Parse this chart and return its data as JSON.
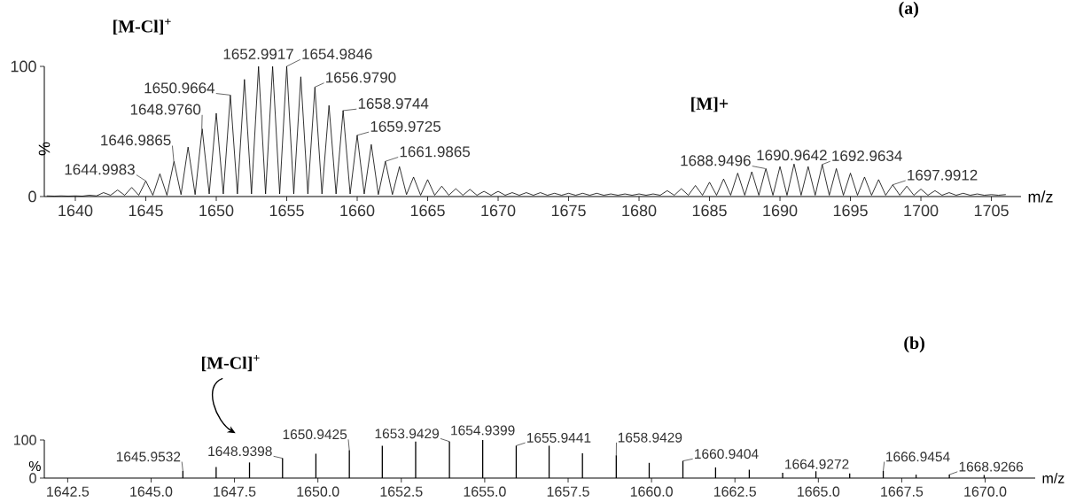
{
  "chart_data": [
    {
      "type": "line",
      "title": "(a)",
      "xlabel": "m/z",
      "ylabel": "%",
      "color": "#000000",
      "x": [
        1638,
        1638.5,
        1639,
        1639.5,
        1640,
        1640.5,
        1641,
        1641.5,
        1642,
        1642.5,
        1643,
        1643.5,
        1644,
        1644.5,
        1645,
        1645.5,
        1646,
        1646.5,
        1647,
        1647.5,
        1648,
        1648.5,
        1649,
        1649.5,
        1650,
        1650.5,
        1651,
        1651.5,
        1652,
        1652.5,
        1653,
        1653.5,
        1654,
        1654.5,
        1655,
        1655.5,
        1656,
        1656.5,
        1657,
        1657.5,
        1658,
        1658.5,
        1659,
        1659.5,
        1660,
        1660.5,
        1661,
        1661.5,
        1662,
        1662.5,
        1663,
        1663.5,
        1664,
        1664.5,
        1665,
        1665.5,
        1666,
        1666.5,
        1667,
        1667.5,
        1668,
        1668.5,
        1669,
        1669.5,
        1670,
        1670.5,
        1671,
        1671.5,
        1672,
        1672.5,
        1673,
        1673.5,
        1674,
        1674.5,
        1675,
        1675.5,
        1676,
        1676.5,
        1677,
        1677.5,
        1678,
        1678.5,
        1679,
        1679.5,
        1680,
        1680.5,
        1681,
        1681.5,
        1682,
        1682.5,
        1683,
        1683.5,
        1684,
        1684.5,
        1685,
        1685.5,
        1686,
        1686.5,
        1687,
        1687.5,
        1688,
        1688.5,
        1689,
        1689.5,
        1690,
        1690.5,
        1691,
        1691.5,
        1692,
        1692.5,
        1693,
        1693.5,
        1694,
        1694.5,
        1695,
        1695.5,
        1696,
        1696.5,
        1697,
        1697.5,
        1698,
        1698.5,
        1699,
        1699.5,
        1700,
        1700.5,
        1701,
        1701.5,
        1702,
        1702.5,
        1703,
        1703.5,
        1704,
        1704.5,
        1705,
        1705.5,
        1706
      ],
      "values": [
        0.5,
        0.3,
        0.5,
        0.3,
        0.5,
        0.3,
        1,
        0.5,
        3,
        1,
        5,
        1,
        7,
        1,
        12,
        1,
        17.5,
        1,
        27,
        1.5,
        38,
        1.5,
        52,
        2,
        64,
        2,
        78,
        2,
        90,
        2,
        100,
        2,
        100,
        2,
        100,
        2,
        92,
        2,
        84,
        2,
        70,
        2,
        66,
        2,
        47,
        2,
        40,
        1.5,
        27,
        1.5,
        23,
        1.5,
        15,
        1,
        13,
        1,
        8,
        1,
        6,
        1,
        5.5,
        1,
        4,
        1,
        4,
        1,
        3,
        1,
        3,
        1,
        3,
        1,
        2.5,
        1,
        2.5,
        1,
        2.5,
        1,
        2.5,
        1,
        2,
        1,
        2,
        1,
        2,
        1,
        2,
        1,
        4.5,
        1,
        6,
        1,
        8.5,
        1,
        11,
        1,
        13.5,
        1,
        18,
        1,
        19,
        1,
        21.5,
        1,
        23,
        1,
        25,
        1,
        23,
        1,
        24.5,
        1,
        21.5,
        1,
        18,
        1,
        15,
        1,
        13,
        1,
        9,
        1,
        8,
        1,
        5.7,
        1,
        4.5,
        1,
        3,
        1,
        2.5,
        1,
        2,
        1,
        1.5,
        1,
        1.5
      ],
      "xlim": [
        1637.8,
        1707.1
      ],
      "ylim": [
        0,
        100
      ],
      "xticks": [
        1640,
        1645,
        1650,
        1655,
        1660,
        1665,
        1670,
        1675,
        1680,
        1685,
        1690,
        1695,
        1700,
        1705
      ],
      "yticks": [
        0,
        100
      ],
      "annotations": [
        {
          "text": "1644.9983",
          "x": 1644.9983,
          "y": 12
        },
        {
          "text": "1646.9865",
          "x": 1646.9865,
          "y": 27
        },
        {
          "text": "1648.9760",
          "x": 1648.976,
          "y": 52
        },
        {
          "text": "1650.9664",
          "x": 1650.9664,
          "y": 78
        },
        {
          "text": "1652.9917",
          "x": 1652.9917,
          "y": 100
        },
        {
          "text": "1654.9846",
          "x": 1654.9846,
          "y": 100
        },
        {
          "text": "1656.9790",
          "x": 1656.979,
          "y": 84
        },
        {
          "text": "1658.9744",
          "x": 1658.9744,
          "y": 66
        },
        {
          "text": "1659.9725",
          "x": 1659.9725,
          "y": 47
        },
        {
          "text": "1661.9865",
          "x": 1661.9865,
          "y": 27
        },
        {
          "text": "1688.9496",
          "x": 1688.9496,
          "y": 21.5
        },
        {
          "text": "1690.9642",
          "x": 1690.9642,
          "y": 25
        },
        {
          "text": "1692.9634",
          "x": 1692.9634,
          "y": 24.5
        },
        {
          "text": "1697.9912",
          "x": 1697.9912,
          "y": 9
        },
        "[M-Cl]$^{+}$",
        "[M]+"
      ]
    },
    {
      "type": "bar",
      "title": "(b)",
      "xlabel": "m/z",
      "ylabel": "%",
      "color": "#000000",
      "x": [
        1645.9532,
        1646.95,
        1647.95,
        1648.9398,
        1649.94,
        1650.9425,
        1651.93,
        1652.93,
        1653.9429,
        1654.9399,
        1655.9441,
        1656.93,
        1657.93,
        1658.9429,
        1659.93,
        1660.9404,
        1661.92,
        1662.93,
        1663.93,
        1664.9272,
        1665.94,
        1666.9454,
        1667.93,
        1668.9266,
        1669.97
      ],
      "values": [
        19,
        29,
        41,
        52,
        64,
        73,
        85,
        96,
        96,
        100,
        85,
        85,
        65,
        60,
        40,
        45,
        28,
        22,
        14,
        18,
        12,
        19,
        9,
        9,
        8
      ],
      "xlim": [
        1641.8,
        1671.5
      ],
      "ylim": [
        0,
        100
      ],
      "xticks": [
        1642.5,
        {
          "value": 1645,
          "label": "1645.0"
        },
        1647.5,
        {
          "value": 1650,
          "label": "1650.0"
        },
        1652.5,
        {
          "value": 1655,
          "label": "1655.0"
        },
        1657.5,
        {
          "value": 1660,
          "label": "1660.0"
        },
        1662.5,
        {
          "value": 1665,
          "label": "1665.0"
        },
        1667.5,
        {
          "value": 1670,
          "label": "1670.0"
        }
      ],
      "yticks": [
        0,
        100
      ],
      "annotations": [
        {
          "text": "1645.9532",
          "x": 1645.9532,
          "y": 19
        },
        {
          "text": "1648.9398",
          "x": 1648.9398,
          "y": 52
        },
        {
          "text": "1650.9425",
          "x": 1650.9425,
          "y": 73
        },
        {
          "text": "1653.9429",
          "x": 1653.9429,
          "y": 96
        },
        {
          "text": "1654.9399",
          "x": 1654.9399,
          "y": 100
        },
        {
          "text": "1655.9441",
          "x": 1655.9441,
          "y": 85
        },
        {
          "text": "1658.9429",
          "x": 1658.9429,
          "y": 60
        },
        {
          "text": "1660.9404",
          "x": 1660.9404,
          "y": 45
        },
        {
          "text": "1664.9272",
          "x": 1664.9272,
          "y": 18
        },
        {
          "text": "1666.9454",
          "x": 1666.9454,
          "y": 19
        },
        {
          "text": "1668.9266",
          "x": 1668.9266,
          "y": 9
        },
        "[M-Cl]$^{+}$"
      ]
    }
  ]
}
